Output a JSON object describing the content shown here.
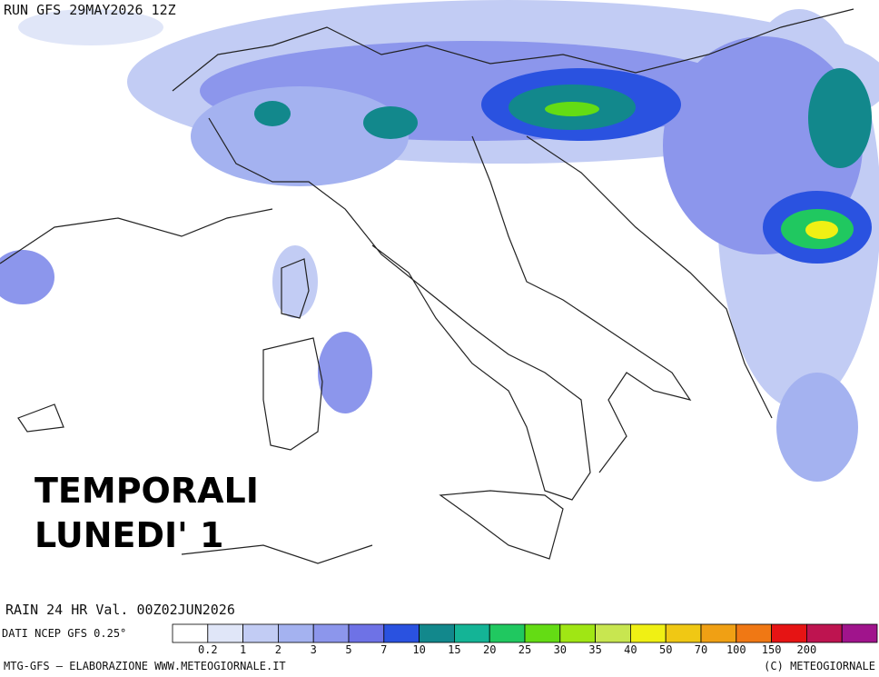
{
  "header": {
    "run": "RUN GFS 29MAY2026 12Z"
  },
  "overlay": {
    "line1": "TEMPORALI",
    "line2": "LUNEDI' 1"
  },
  "field": {
    "label": "RAIN 24 HR Val. 00Z02JUN2026",
    "source": "DATI NCEP GFS 0.25°"
  },
  "legend": {
    "colors": [
      "#ffffff",
      "#e0e6f8",
      "#c2ccf4",
      "#a4b2f0",
      "#8c96ec",
      "#6e72e6",
      "#2a52e0",
      "#12888c",
      "#14b496",
      "#20c860",
      "#64dc14",
      "#a0e614",
      "#c8e650",
      "#f0f014",
      "#f0c814",
      "#f0a014",
      "#f07814",
      "#e61414",
      "#be1450",
      "#a0148c"
    ],
    "labels": [
      "0.2",
      "1",
      "2",
      "3",
      "5",
      "7",
      "10",
      "15",
      "20",
      "25",
      "30",
      "35",
      "40",
      "50",
      "70",
      "100",
      "150",
      "200"
    ]
  },
  "footer": {
    "left": "MTG-GFS — ELABORAZIONE WWW.METEOGIORNALE.IT",
    "right": "(C) METEOGIORNALE"
  }
}
